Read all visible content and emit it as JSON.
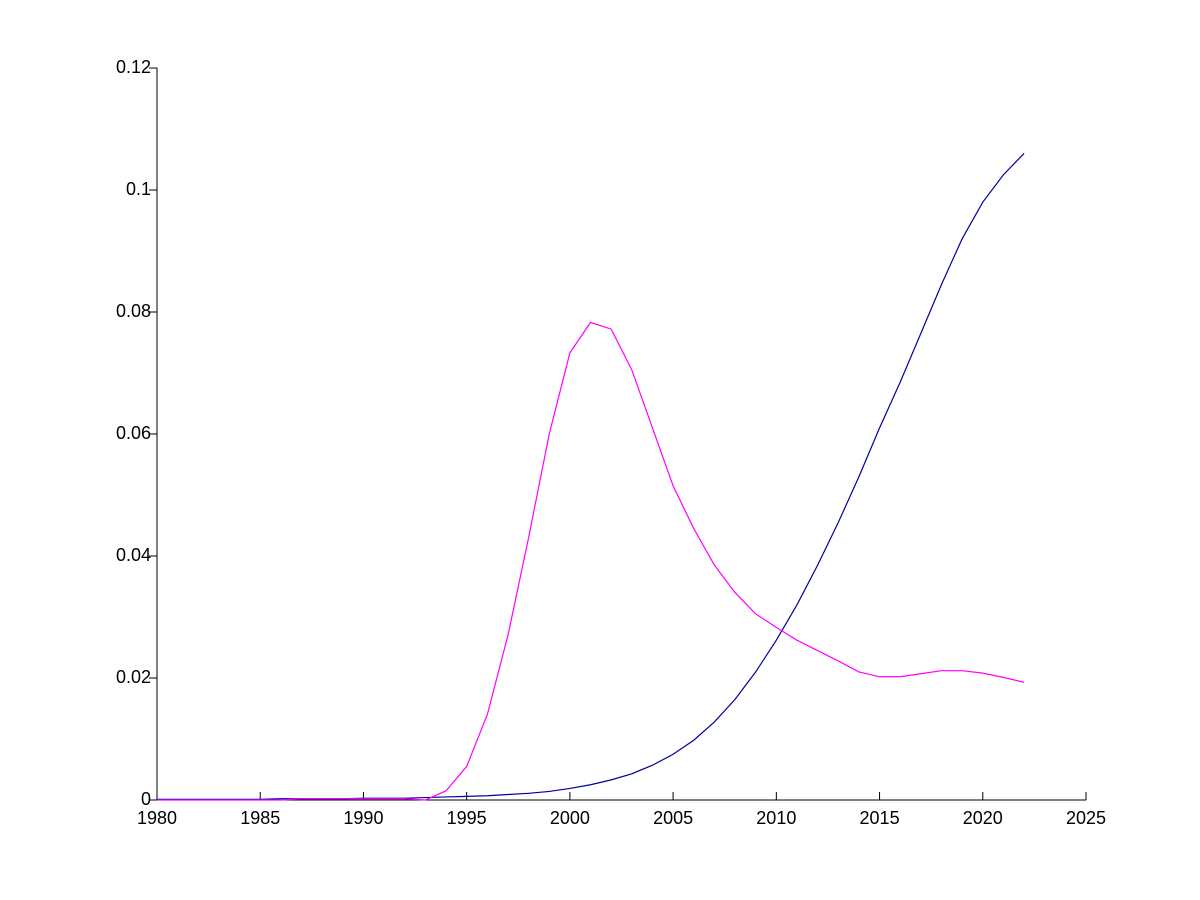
{
  "chart_data": {
    "type": "line",
    "x": [
      1980,
      1981,
      1982,
      1983,
      1984,
      1985,
      1986,
      1987,
      1988,
      1989,
      1990,
      1991,
      1992,
      1993,
      1994,
      1995,
      1996,
      1997,
      1998,
      1999,
      2000,
      2001,
      2002,
      2003,
      2004,
      2005,
      2006,
      2007,
      2008,
      2009,
      2010,
      2011,
      2012,
      2013,
      2014,
      2015,
      2016,
      2017,
      2018,
      2019,
      2020,
      2021,
      2022
    ],
    "series": [
      {
        "color": "#0000a0",
        "values": [
          0.0001,
          0.0001,
          0.0001,
          0.0001,
          0.0001,
          0.0001,
          0.0002,
          0.0002,
          0.0002,
          0.0002,
          0.0003,
          0.0003,
          0.0003,
          0.0004,
          0.0005,
          0.0006,
          0.0007,
          0.0009,
          0.0011,
          0.0014,
          0.0019,
          0.0025,
          0.0033,
          0.0043,
          0.0057,
          0.0075,
          0.0098,
          0.0128,
          0.0165,
          0.021,
          0.0262,
          0.032,
          0.0385,
          0.0455,
          0.053,
          0.061,
          0.0685,
          0.0765,
          0.0845,
          0.092,
          0.098,
          0.1025,
          0.106
        ]
      },
      {
        "color": "#ff00ff",
        "values": [
          0,
          0,
          0,
          0,
          0,
          0,
          0,
          0.0002,
          0.0002,
          0.0002,
          0.0002,
          0.0002,
          0.0002,
          0,
          0.0015,
          0.0055,
          0.014,
          0.027,
          0.043,
          0.06,
          0.0733,
          0.0783,
          0.0772,
          0.0705,
          0.061,
          0.0515,
          0.0445,
          0.0385,
          0.034,
          0.0305,
          0.0283,
          0.0262,
          0.0245,
          0.0228,
          0.021,
          0.0202,
          0.0202,
          0.0207,
          0.0212,
          0.0212,
          0.0208,
          0.0201,
          0.0193
        ]
      }
    ],
    "xlim": [
      1980,
      2025
    ],
    "xticks": [
      1980,
      1985,
      1990,
      1995,
      2000,
      2005,
      2010,
      2015,
      2020,
      2025
    ],
    "ylim": [
      0,
      0.12
    ],
    "yticks": [
      0,
      0.02,
      0.04,
      0.06,
      0.08,
      0.1,
      0.12
    ]
  }
}
